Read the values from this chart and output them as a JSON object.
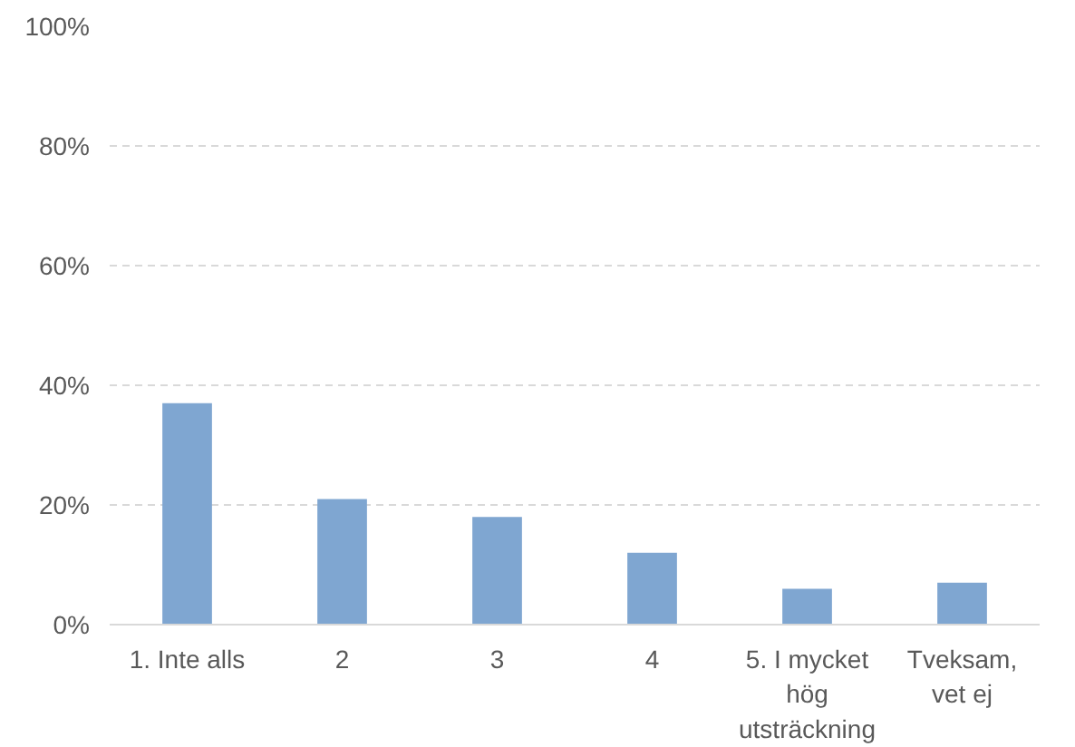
{
  "chart_data": {
    "type": "bar",
    "categories": [
      "1. Inte alls",
      "2",
      "3",
      "4",
      "5. I mycket hög utsträckning",
      "Tveksam, vet ej"
    ],
    "values": [
      37,
      21,
      18,
      12,
      6,
      7
    ],
    "color": "#7fa6d1",
    "ylim": [
      0,
      100
    ],
    "yticks": [
      {
        "value": 0,
        "label": "0%"
      },
      {
        "value": 20,
        "label": "20%"
      },
      {
        "value": 40,
        "label": "40%"
      },
      {
        "value": 60,
        "label": "60%"
      },
      {
        "value": 80,
        "label": "80%"
      },
      {
        "value": 100,
        "label": "100%"
      }
    ],
    "grid": "y"
  }
}
